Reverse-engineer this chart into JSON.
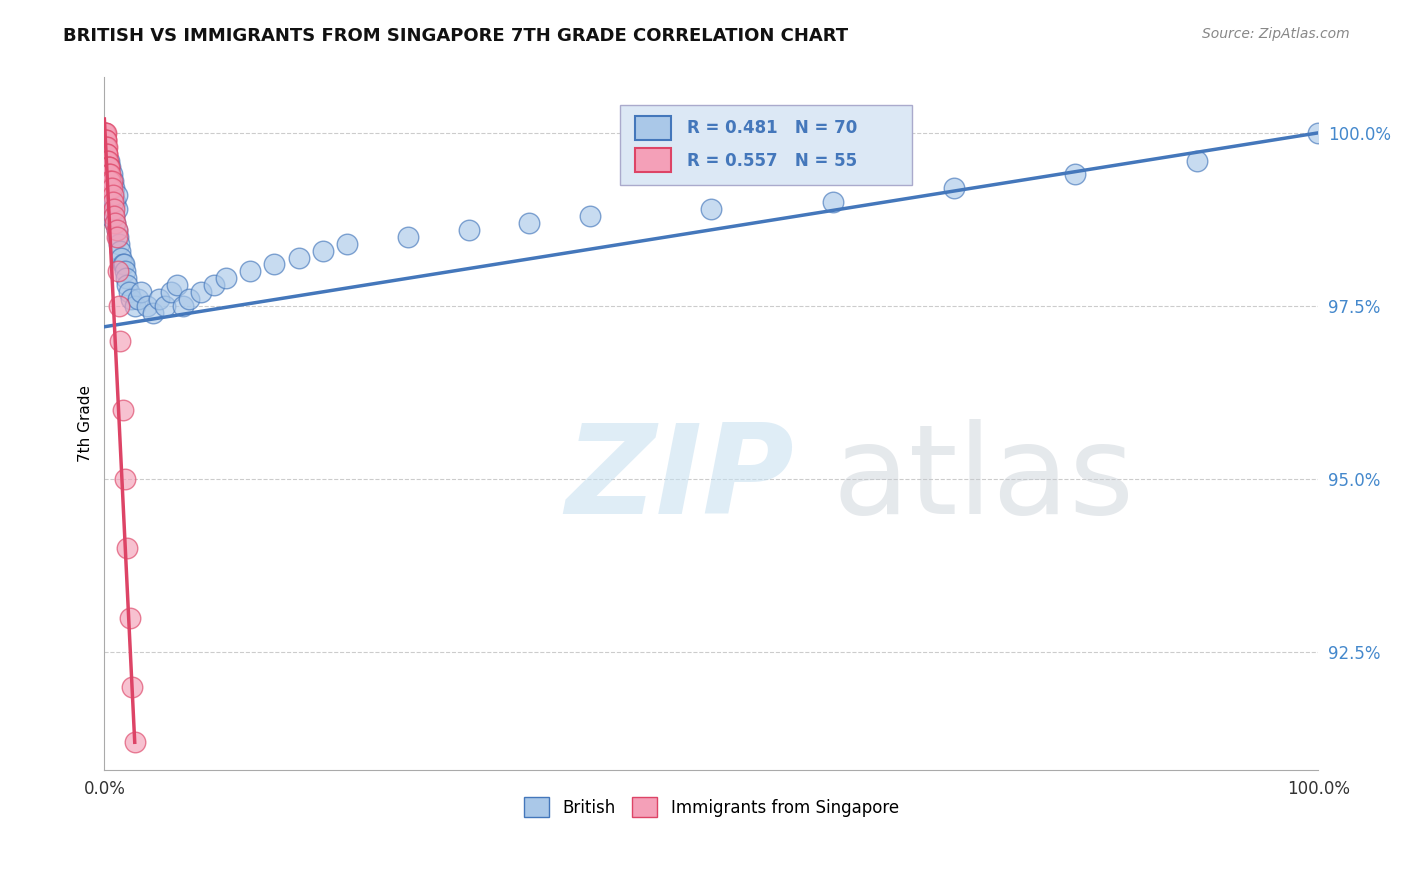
{
  "title": "BRITISH VS IMMIGRANTS FROM SINGAPORE 7TH GRADE CORRELATION CHART",
  "source": "Source: ZipAtlas.com",
  "ylabel": "7th Grade",
  "x_min": 0.0,
  "x_max": 1.0,
  "y_min": 0.908,
  "y_max": 1.008,
  "yticks": [
    0.925,
    0.95,
    0.975,
    1.0
  ],
  "ytick_labels": [
    "92.5%",
    "95.0%",
    "97.5%",
    "100.0%"
  ],
  "R_british": 0.481,
  "N_british": 70,
  "R_singapore": 0.557,
  "N_singapore": 55,
  "british_color": "#aac8e8",
  "singapore_color": "#f4a0b8",
  "british_line_color": "#4477bb",
  "singapore_line_color": "#dd4466",
  "legend_british_label": "British",
  "legend_singapore_label": "Immigrants from Singapore",
  "british_x": [
    0.001,
    0.001,
    0.002,
    0.002,
    0.002,
    0.003,
    0.003,
    0.003,
    0.004,
    0.004,
    0.004,
    0.004,
    0.005,
    0.005,
    0.005,
    0.005,
    0.006,
    0.006,
    0.006,
    0.007,
    0.007,
    0.007,
    0.008,
    0.008,
    0.008,
    0.009,
    0.009,
    0.01,
    0.01,
    0.01,
    0.011,
    0.012,
    0.013,
    0.014,
    0.015,
    0.016,
    0.017,
    0.018,
    0.019,
    0.02,
    0.022,
    0.025,
    0.028,
    0.03,
    0.035,
    0.04,
    0.045,
    0.05,
    0.055,
    0.06,
    0.065,
    0.07,
    0.08,
    0.09,
    0.1,
    0.12,
    0.14,
    0.16,
    0.18,
    0.2,
    0.25,
    0.3,
    0.35,
    0.4,
    0.5,
    0.6,
    0.7,
    0.8,
    0.9,
    1.0
  ],
  "british_y": [
    0.993,
    0.995,
    0.991,
    0.994,
    0.996,
    0.99,
    0.993,
    0.995,
    0.989,
    0.992,
    0.994,
    0.996,
    0.988,
    0.991,
    0.993,
    0.995,
    0.99,
    0.992,
    0.994,
    0.989,
    0.991,
    0.993,
    0.988,
    0.99,
    0.992,
    0.987,
    0.99,
    0.986,
    0.989,
    0.991,
    0.985,
    0.984,
    0.983,
    0.982,
    0.981,
    0.981,
    0.98,
    0.979,
    0.978,
    0.977,
    0.976,
    0.975,
    0.976,
    0.977,
    0.975,
    0.974,
    0.976,
    0.975,
    0.977,
    0.978,
    0.975,
    0.976,
    0.977,
    0.978,
    0.979,
    0.98,
    0.981,
    0.982,
    0.983,
    0.984,
    0.985,
    0.986,
    0.987,
    0.988,
    0.989,
    0.99,
    0.992,
    0.994,
    0.996,
    1.0
  ],
  "singapore_x": [
    0.0003,
    0.0003,
    0.0003,
    0.0003,
    0.0003,
    0.0005,
    0.0005,
    0.0005,
    0.0005,
    0.0005,
    0.0007,
    0.0007,
    0.0007,
    0.001,
    0.001,
    0.001,
    0.001,
    0.001,
    0.0015,
    0.0015,
    0.0015,
    0.002,
    0.002,
    0.002,
    0.002,
    0.0025,
    0.0025,
    0.003,
    0.003,
    0.003,
    0.0035,
    0.004,
    0.004,
    0.004,
    0.005,
    0.005,
    0.005,
    0.006,
    0.006,
    0.007,
    0.007,
    0.008,
    0.008,
    0.009,
    0.01,
    0.01,
    0.011,
    0.012,
    0.013,
    0.015,
    0.017,
    0.019,
    0.021,
    0.023,
    0.025
  ],
  "singapore_y": [
    1.0,
    0.999,
    0.998,
    0.997,
    0.996,
    1.0,
    0.999,
    0.998,
    0.997,
    0.996,
    1.0,
    0.999,
    0.998,
    1.0,
    0.999,
    0.998,
    0.997,
    0.996,
    0.999,
    0.998,
    0.997,
    0.998,
    0.997,
    0.996,
    0.995,
    0.997,
    0.996,
    0.996,
    0.995,
    0.994,
    0.995,
    0.995,
    0.994,
    0.993,
    0.994,
    0.993,
    0.992,
    0.993,
    0.992,
    0.991,
    0.99,
    0.989,
    0.988,
    0.987,
    0.986,
    0.985,
    0.98,
    0.975,
    0.97,
    0.96,
    0.95,
    0.94,
    0.93,
    0.92,
    0.912
  ],
  "british_trend_x": [
    0.0,
    1.0
  ],
  "british_trend_y": [
    0.972,
    1.0
  ],
  "singapore_trend_x": [
    0.0,
    0.025
  ],
  "singapore_trend_y": [
    1.002,
    0.912
  ]
}
